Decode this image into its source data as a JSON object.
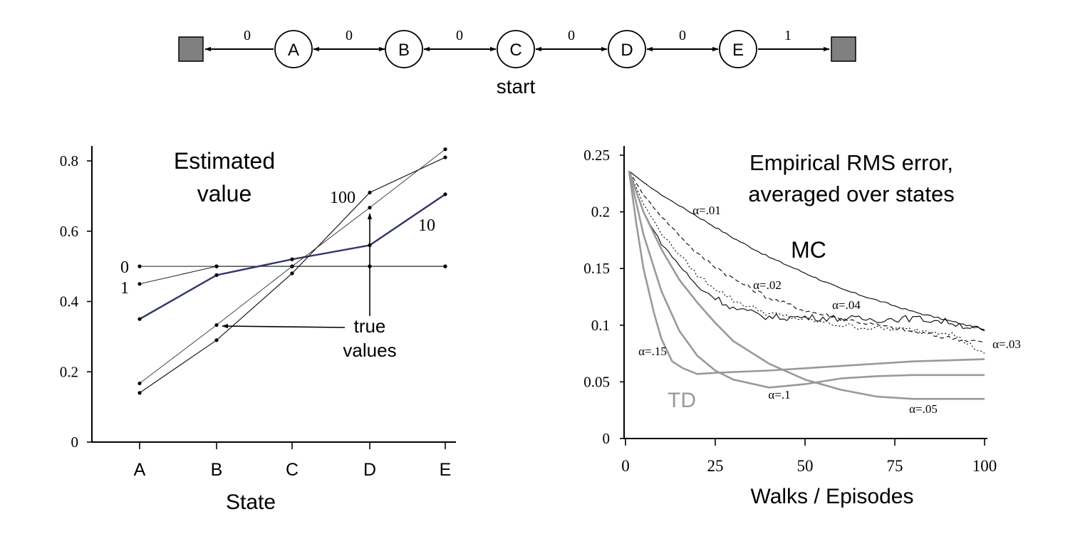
{
  "chain": {
    "nodes": [
      "A",
      "B",
      "C",
      "D",
      "E"
    ],
    "rewards": [
      "0",
      "0",
      "0",
      "0",
      "0",
      "1"
    ],
    "start_label": "start"
  },
  "left_panel": {
    "title_line1": "Estimated",
    "title_line2": "value",
    "xlabel": "State",
    "curve_labels": {
      "c0": "0",
      "c1": "1",
      "c10": "10",
      "c100": "100"
    },
    "annotation_line1": "true",
    "annotation_line2": "values"
  },
  "right_panel": {
    "title_line1": "Empirical RMS error,",
    "title_line2": "averaged over states",
    "xlabel": "Walks / Episodes",
    "mc_label": "MC",
    "td_label": "TD",
    "alpha_labels": {
      "a01": "α=.01",
      "a02": "α=.02",
      "a04": "α=.04",
      "a03": "α=.03",
      "a15": "α=.15",
      "a1": "α=.1",
      "a05": "α=.05"
    }
  },
  "colors": {
    "black": "#1a1a1a",
    "navy": "#2f3568",
    "td_gray": "#999999",
    "terminal_gray": "#808080"
  },
  "chart_data": [
    {
      "type": "line",
      "title": "Estimated value",
      "xlabel": "State",
      "ylabel": "",
      "categories": [
        "A",
        "B",
        "C",
        "D",
        "E"
      ],
      "ylim": [
        0,
        0.8
      ],
      "yticks": [
        "0",
        "0.2",
        "0.4",
        "0.6",
        "0.8"
      ],
      "series": [
        {
          "name": "0",
          "values": [
            0.5,
            0.5,
            0.5,
            0.5,
            0.5
          ]
        },
        {
          "name": "1",
          "values": [
            0.45,
            0.5,
            0.5,
            0.5,
            0.5
          ]
        },
        {
          "name": "10",
          "values": [
            0.35,
            0.475,
            0.52,
            0.56,
            0.705
          ]
        },
        {
          "name": "100",
          "values": [
            0.14,
            0.29,
            0.48,
            0.71,
            0.81
          ]
        },
        {
          "name": "true values",
          "values": [
            0.167,
            0.333,
            0.5,
            0.667,
            0.833
          ]
        }
      ]
    },
    {
      "type": "line",
      "title": "Empirical RMS error, averaged over states",
      "xlabel": "Walks / Episodes",
      "ylabel": "",
      "xlim": [
        0,
        100
      ],
      "ylim": [
        0,
        0.25
      ],
      "xticks": [
        "0",
        "25",
        "50",
        "75",
        "100"
      ],
      "yticks": [
        "0",
        "0.05",
        "0.1",
        "0.15",
        "0.2",
        "0.25"
      ],
      "series": [
        {
          "name": "MC α=.01",
          "x": [
            1,
            5,
            10,
            20,
            30,
            40,
            50,
            60,
            70,
            80,
            90,
            100
          ],
          "values": [
            0.236,
            0.226,
            0.215,
            0.196,
            0.177,
            0.16,
            0.146,
            0.132,
            0.122,
            0.112,
            0.104,
            0.096
          ]
        },
        {
          "name": "MC α=.02",
          "x": [
            1,
            5,
            10,
            20,
            30,
            40,
            50,
            60,
            70,
            80,
            90,
            100
          ],
          "values": [
            0.236,
            0.215,
            0.196,
            0.163,
            0.141,
            0.124,
            0.113,
            0.106,
            0.1,
            0.094,
            0.089,
            0.085
          ]
        },
        {
          "name": "MC α=.03",
          "x": [
            1,
            5,
            10,
            20,
            30,
            40,
            50,
            60,
            70,
            80,
            90,
            100
          ],
          "values": [
            0.236,
            0.207,
            0.181,
            0.144,
            0.122,
            0.11,
            0.105,
            0.1,
            0.097,
            0.096,
            0.094,
            0.075
          ]
        },
        {
          "name": "MC α=.04",
          "x": [
            1,
            5,
            10,
            20,
            30,
            40,
            50,
            60,
            70,
            80,
            90,
            100
          ],
          "values": [
            0.236,
            0.2,
            0.172,
            0.134,
            0.115,
            0.107,
            0.107,
            0.106,
            0.105,
            0.106,
            0.103,
            0.095
          ]
        },
        {
          "name": "TD α=.15",
          "x": [
            1,
            3,
            5,
            8,
            10,
            13,
            16,
            20,
            25,
            40,
            60,
            80,
            100
          ],
          "values": [
            0.236,
            0.19,
            0.15,
            0.11,
            0.088,
            0.068,
            0.062,
            0.057,
            0.058,
            0.06,
            0.064,
            0.068,
            0.07
          ]
        },
        {
          "name": "TD α=.1",
          "x": [
            1,
            5,
            10,
            15,
            20,
            25,
            30,
            40,
            50,
            60,
            70,
            80,
            100
          ],
          "values": [
            0.236,
            0.18,
            0.13,
            0.095,
            0.073,
            0.06,
            0.052,
            0.045,
            0.048,
            0.053,
            0.055,
            0.056,
            0.056
          ]
        },
        {
          "name": "TD α=.05",
          "x": [
            1,
            5,
            10,
            15,
            20,
            25,
            30,
            40,
            50,
            60,
            70,
            80,
            100
          ],
          "values": [
            0.236,
            0.2,
            0.167,
            0.14,
            0.12,
            0.102,
            0.086,
            0.066,
            0.052,
            0.043,
            0.037,
            0.035,
            0.035
          ]
        }
      ]
    }
  ]
}
